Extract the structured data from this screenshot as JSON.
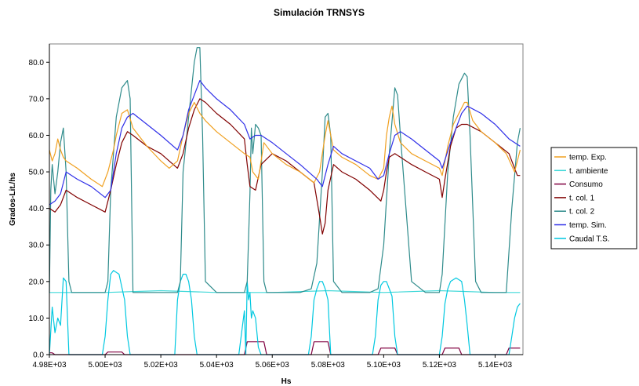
{
  "chart_data": {
    "type": "line",
    "title": "Simulación TRNSYS",
    "xlabel": "Hs",
    "ylabel": "Grados-Lit./hs",
    "xlim": [
      4980,
      5150
    ],
    "ylim": [
      0,
      85
    ],
    "x_ticks": [
      4980,
      5000,
      5020,
      5040,
      5060,
      5080,
      5100,
      5120,
      5140
    ],
    "x_tick_labels": [
      "4.98E+03",
      "5.00E+03",
      "5.02E+03",
      "5.04E+03",
      "5.06E+03",
      "5.08E+03",
      "5.10E+03",
      "5.12E+03",
      "5.14E+03"
    ],
    "y_ticks": [
      0,
      10,
      20,
      30,
      40,
      50,
      60,
      70,
      80
    ],
    "y_tick_labels": [
      "0.0",
      "10.0",
      "20.0",
      "30.0",
      "40.0",
      "50.0",
      "60.0",
      "70.0",
      "80.0"
    ],
    "grid": false,
    "legend_position": "right",
    "series": [
      {
        "name": "temp. Exp.",
        "color": "#F0A020",
        "x": [
          4980,
          4981,
          4982,
          4983,
          4984,
          4985,
          4986,
          4990,
          4995,
          4999,
          5001,
          5003,
          5004,
          5006,
          5008,
          5010,
          5015,
          5020,
          5023,
          5026,
          5028,
          5030,
          5032,
          5034,
          5036,
          5040,
          5045,
          5050,
          5052,
          5053,
          5055,
          5057,
          5060,
          5065,
          5070,
          5075,
          5077,
          5079,
          5080,
          5082,
          5085,
          5090,
          5095,
          5098,
          5100,
          5101,
          5102,
          5103,
          5104,
          5106,
          5110,
          5115,
          5120,
          5121,
          5123,
          5125,
          5127,
          5129,
          5130,
          5132,
          5135,
          5140,
          5144,
          5147,
          5148,
          5149
        ],
        "values": [
          56,
          53,
          55,
          59,
          56,
          54,
          53,
          51,
          48,
          46,
          50,
          56,
          60,
          66,
          67,
          62,
          57,
          53,
          51,
          53,
          60,
          66,
          69,
          66,
          64,
          61,
          58,
          55,
          54,
          50,
          48,
          58,
          55,
          52,
          50,
          47,
          50,
          60,
          64,
          56,
          54,
          52,
          49,
          48,
          51,
          60,
          65,
          68,
          63,
          58,
          55,
          53,
          51,
          49,
          57,
          63,
          66,
          69,
          69,
          64,
          61,
          58,
          55,
          50,
          53,
          56
        ]
      },
      {
        "name": "t. ambiente",
        "color": "#40D8D8",
        "x": [
          4980,
          5000,
          5020,
          5040,
          5060,
          5080,
          5100,
          5120,
          5140,
          5149
        ],
        "values": [
          17,
          17,
          17.5,
          17,
          17,
          17.5,
          17,
          17.5,
          17,
          17
        ]
      },
      {
        "name": "Consumo",
        "color": "#800040",
        "x": [
          4980,
          4981,
          4982,
          5000,
          5001,
          5002,
          5005,
          5006,
          5007,
          5050,
          5051,
          5052,
          5056,
          5057,
          5058,
          5074,
          5075,
          5076,
          5079,
          5080,
          5081,
          5098,
          5099,
          5100,
          5103,
          5104,
          5105,
          5121,
          5122,
          5123,
          5126,
          5127,
          5128,
          5144,
          5145,
          5146,
          5149
        ],
        "values": [
          0.5,
          0.5,
          0,
          0,
          0.7,
          0.7,
          0.7,
          0.7,
          0,
          0,
          3.5,
          3.5,
          3.5,
          3.5,
          0,
          0,
          3.5,
          3.5,
          3.5,
          3.5,
          0,
          0,
          1.8,
          1.8,
          1.8,
          1.8,
          0,
          0,
          1.8,
          1.8,
          1.8,
          1.8,
          0,
          0,
          1.8,
          1.8,
          1.8
        ]
      },
      {
        "name": "t. col. 1",
        "color": "#800000",
        "x": [
          4980,
          4982,
          4984,
          4986,
          4990,
          4995,
          5000,
          5002,
          5004,
          5006,
          5008,
          5010,
          5015,
          5020,
          5026,
          5028,
          5030,
          5032,
          5034,
          5036,
          5040,
          5045,
          5050,
          5051,
          5052,
          5054,
          5056,
          5060,
          5065,
          5070,
          5075,
          5077,
          5078,
          5079,
          5080,
          5082,
          5085,
          5090,
          5095,
          5099,
          5100,
          5101,
          5102,
          5104,
          5106,
          5110,
          5115,
          5120,
          5121,
          5122,
          5124,
          5126,
          5128,
          5130,
          5135,
          5140,
          5145,
          5147,
          5148,
          5149
        ],
        "values": [
          40,
          39,
          41,
          45,
          43,
          41,
          39,
          45,
          52,
          58,
          61,
          60,
          57,
          55,
          51,
          55,
          62,
          67,
          70,
          69,
          66,
          63,
          59,
          52,
          46,
          45,
          52,
          55,
          53,
          50,
          47,
          38,
          33,
          36,
          45,
          52,
          50,
          48,
          45,
          42,
          45,
          50,
          54,
          55,
          54,
          52,
          50,
          48,
          43,
          48,
          57,
          62,
          63,
          63,
          61,
          58,
          55,
          51,
          49,
          49
        ]
      },
      {
        "name": "t. col. 2",
        "color": "#2E8B8B",
        "x": [
          4980,
          4980.5,
          4981,
          4982,
          4983,
          4984,
          4985,
          4986,
          4987,
          4988,
          4990,
          4995,
          5000,
          5001,
          5002,
          5004,
          5006,
          5008,
          5009,
          5010,
          5012,
          5015,
          5020,
          5026,
          5027,
          5028,
          5030,
          5032,
          5033,
          5034,
          5035,
          5036,
          5040,
          5045,
          5050,
          5051,
          5052,
          5052.5,
          5053,
          5054,
          5055,
          5056,
          5057,
          5058,
          5059,
          5060,
          5065,
          5070,
          5074,
          5076,
          5078,
          5079,
          5080,
          5081,
          5082,
          5085,
          5090,
          5095,
          5098,
          5100,
          5102,
          5104,
          5105,
          5106,
          5110,
          5115,
          5120,
          5121,
          5123,
          5125,
          5127,
          5129,
          5130,
          5131,
          5133,
          5135,
          5140,
          5144,
          5146,
          5148,
          5149
        ],
        "values": [
          17,
          45,
          52,
          44,
          50,
          58,
          62,
          50,
          20,
          17,
          17,
          17,
          17,
          20,
          45,
          65,
          73,
          75,
          70,
          17,
          17,
          17,
          17,
          17,
          20,
          50,
          65,
          80,
          84,
          84,
          60,
          20,
          17,
          17,
          17,
          20,
          44,
          62,
          55,
          63,
          62,
          60,
          20,
          17,
          17,
          17,
          17,
          17,
          18,
          25,
          50,
          65,
          66,
          60,
          20,
          17,
          17,
          17,
          18,
          30,
          55,
          73,
          71,
          60,
          20,
          17,
          17,
          22,
          50,
          65,
          74,
          77,
          76,
          60,
          20,
          17,
          17,
          17,
          40,
          58,
          62
        ]
      },
      {
        "name": "temp. Sim.",
        "color": "#3030E8",
        "x": [
          4980,
          4982,
          4984,
          4986,
          4990,
          4995,
          5000,
          5002,
          5004,
          5006,
          5008,
          5010,
          5015,
          5020,
          5026,
          5028,
          5030,
          5032,
          5034,
          5036,
          5040,
          5045,
          5050,
          5052,
          5054,
          5056,
          5060,
          5065,
          5070,
          5076,
          5078,
          5080,
          5082,
          5085,
          5090,
          5095,
          5098,
          5100,
          5102,
          5104,
          5106,
          5110,
          5115,
          5120,
          5121,
          5124,
          5128,
          5130,
          5135,
          5140,
          5145,
          5149
        ],
        "values": [
          41,
          42,
          44,
          50,
          48,
          46,
          43,
          45,
          55,
          62,
          65,
          66,
          63,
          60,
          56,
          60,
          67,
          71,
          75,
          73,
          70,
          67,
          63,
          59,
          60,
          60,
          58,
          55,
          52,
          48,
          46,
          52,
          57,
          55,
          53,
          51,
          48,
          49,
          55,
          60,
          61,
          59,
          56,
          53,
          51,
          58,
          66,
          68,
          66,
          63,
          59,
          57
        ]
      },
      {
        "name": "Caudal T.S.",
        "color": "#00C8E0",
        "x": [
          4980,
          4981,
          4982,
          4983,
          4984,
          4985,
          4986,
          4987,
          4988,
          4999,
          5000,
          5001,
          5002,
          5003,
          5005,
          5007,
          5008,
          5009,
          5025,
          5026,
          5027,
          5028,
          5029,
          5030,
          5031,
          5032,
          5033,
          5048,
          5050,
          5050.5,
          5051,
          5051.5,
          5052,
          5052.5,
          5053,
          5054,
          5055,
          5056,
          5073,
          5074,
          5075,
          5076,
          5077,
          5078,
          5079,
          5080,
          5081,
          5096,
          5097,
          5098,
          5099,
          5100,
          5101,
          5102,
          5103,
          5104,
          5105,
          5120,
          5121,
          5122,
          5123,
          5124,
          5126,
          5128,
          5129,
          5130,
          5131,
          5145,
          5146,
          5147,
          5148,
          5149
        ],
        "values": [
          0,
          13,
          6,
          10,
          8,
          21,
          20,
          0,
          0,
          0,
          5,
          15,
          22,
          23,
          22,
          15,
          5,
          0,
          0,
          15,
          20,
          22,
          22,
          20,
          15,
          5,
          0,
          0,
          12,
          0,
          20,
          15,
          17,
          10,
          12,
          10,
          2,
          0,
          0,
          5,
          15,
          18,
          20,
          20,
          18,
          15,
          0,
          0,
          5,
          15,
          19,
          20,
          20,
          18,
          16,
          5,
          0,
          0,
          5,
          14,
          18,
          20,
          21,
          20,
          15,
          8,
          0,
          0,
          5,
          10,
          13,
          14
        ]
      }
    ]
  }
}
